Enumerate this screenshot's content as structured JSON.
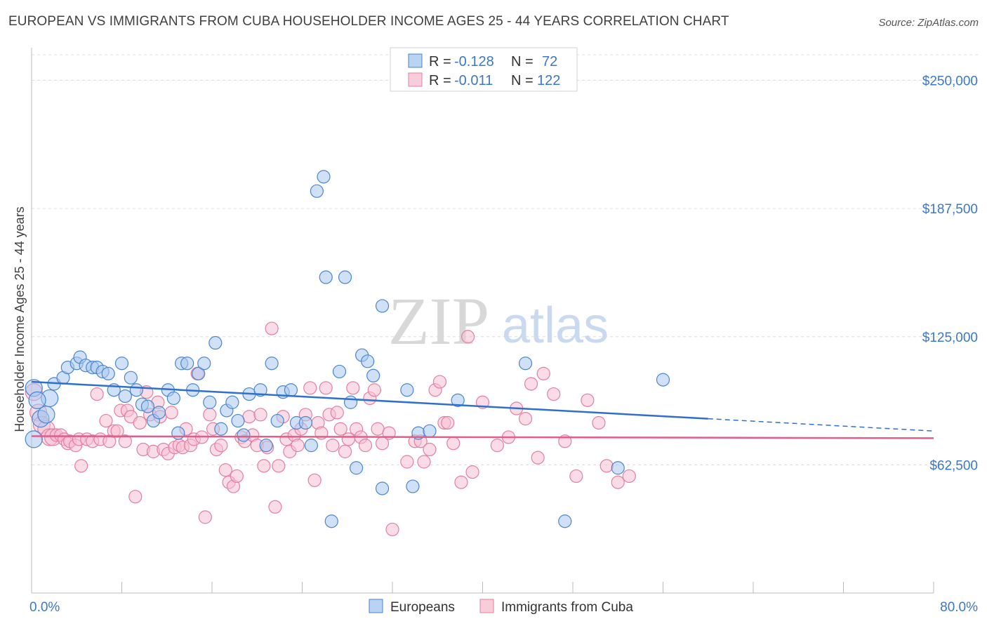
{
  "title": "EUROPEAN VS IMMIGRANTS FROM CUBA HOUSEHOLDER INCOME AGES 25 - 44 YEARS CORRELATION CHART",
  "source": "Source: ZipAtlas.com",
  "watermark": {
    "zip": "ZIP",
    "atlas": "atlas"
  },
  "legend": {
    "r_label": "R =",
    "n_label": "N =",
    "rows": [
      {
        "r": "-0.128",
        "n": "72"
      },
      {
        "r": "-0.011",
        "n": "122"
      }
    ]
  },
  "colors": {
    "european_fill": "#a9c8f0",
    "european_stroke": "#4a86cf",
    "european_line": "#2f6fce",
    "cuba_fill": "#f6c0d1",
    "cuba_stroke": "#e37fa1",
    "cuba_line": "#e35d8a",
    "tick_text": "#3b78c8",
    "grid": "#dddddd"
  },
  "chart_data": {
    "type": "scatter",
    "title": "EUROPEAN VS IMMIGRANTS FROM CUBA HOUSEHOLDER INCOME AGES 25 - 44 YEARS CORRELATION CHART",
    "xlabel": "",
    "ylabel": "Householder Income Ages 25 - 44 years",
    "xlim": [
      0,
      80
    ],
    "ylim": [
      0,
      262500
    ],
    "x_tick_labels": [
      "0.0%",
      "80.0%"
    ],
    "y_ticks": [
      62500,
      125000,
      187500,
      250000
    ],
    "y_tick_labels": [
      "$62,500",
      "$125,000",
      "$187,500",
      "$250,000"
    ],
    "grid": true,
    "legend_position": "top-center",
    "series": [
      {
        "name": "Europeans",
        "points": [
          [
            0.2,
            75000
          ],
          [
            0.8,
            85000
          ],
          [
            1.3,
            87000
          ],
          [
            1.6,
            95000
          ],
          [
            2.0,
            102000
          ],
          [
            2.8,
            105000
          ],
          [
            3.2,
            110000
          ],
          [
            4.0,
            112000
          ],
          [
            4.3,
            115000
          ],
          [
            4.8,
            111000
          ],
          [
            5.4,
            110000
          ],
          [
            5.8,
            110000
          ],
          [
            6.3,
            108000
          ],
          [
            6.8,
            107000
          ],
          [
            7.3,
            99000
          ],
          [
            8.0,
            112000
          ],
          [
            8.3,
            96000
          ],
          [
            8.8,
            105000
          ],
          [
            9.3,
            99000
          ],
          [
            9.8,
            92000
          ],
          [
            10.3,
            91000
          ],
          [
            10.8,
            84000
          ],
          [
            11.3,
            88000
          ],
          [
            12.1,
            99000
          ],
          [
            12.6,
            95000
          ],
          [
            13.0,
            78000
          ],
          [
            13.3,
            112000
          ],
          [
            13.8,
            112000
          ],
          [
            14.3,
            99000
          ],
          [
            14.8,
            107000
          ],
          [
            15.3,
            112000
          ],
          [
            15.8,
            93000
          ],
          [
            16.3,
            122000
          ],
          [
            16.8,
            80000
          ],
          [
            17.3,
            89000
          ],
          [
            17.8,
            93000
          ],
          [
            18.3,
            84000
          ],
          [
            18.8,
            77000
          ],
          [
            19.3,
            97000
          ],
          [
            20.3,
            99000
          ],
          [
            20.8,
            72000
          ],
          [
            21.3,
            112000
          ],
          [
            21.8,
            84000
          ],
          [
            22.3,
            98000
          ],
          [
            23.0,
            99000
          ],
          [
            23.5,
            83000
          ],
          [
            24.3,
            83000
          ],
          [
            24.8,
            72000
          ],
          [
            25.3,
            196000
          ],
          [
            25.9,
            203000
          ],
          [
            26.1,
            154000
          ],
          [
            26.6,
            35000
          ],
          [
            27.3,
            108000
          ],
          [
            27.8,
            154000
          ],
          [
            28.3,
            93000
          ],
          [
            28.8,
            61000
          ],
          [
            29.3,
            116000
          ],
          [
            29.8,
            113000
          ],
          [
            30.3,
            106000
          ],
          [
            31.1,
            140000
          ],
          [
            31.1,
            51000
          ],
          [
            33.3,
            99000
          ],
          [
            33.8,
            52000
          ],
          [
            34.3,
            78000
          ],
          [
            35.3,
            79000
          ],
          [
            37.8,
            94000
          ],
          [
            43.8,
            112000
          ],
          [
            47.3,
            35000
          ],
          [
            52.0,
            61000
          ],
          [
            56.0,
            104000
          ],
          [
            0.2,
            100000
          ],
          [
            0.5,
            94000
          ]
        ]
      },
      {
        "name": "Immigrants from Cuba",
        "points": [
          [
            0.2,
            98000
          ],
          [
            0.6,
            88000
          ],
          [
            0.9,
            82000
          ],
          [
            1.3,
            80000
          ],
          [
            1.6,
            76000
          ],
          [
            1.9,
            76000
          ],
          [
            2.2,
            77000
          ],
          [
            2.6,
            77000
          ],
          [
            2.9,
            75000
          ],
          [
            3.2,
            73000
          ],
          [
            3.4,
            74000
          ],
          [
            3.9,
            72000
          ],
          [
            4.2,
            75000
          ],
          [
            4.4,
            62000
          ],
          [
            4.9,
            75000
          ],
          [
            5.4,
            74000
          ],
          [
            5.8,
            97000
          ],
          [
            6.1,
            75000
          ],
          [
            6.6,
            84000
          ],
          [
            6.9,
            74000
          ],
          [
            7.3,
            79000
          ],
          [
            7.6,
            79000
          ],
          [
            7.9,
            89000
          ],
          [
            8.3,
            74000
          ],
          [
            8.5,
            89000
          ],
          [
            8.8,
            86000
          ],
          [
            9.2,
            47000
          ],
          [
            9.6,
            83000
          ],
          [
            9.9,
            70000
          ],
          [
            10.2,
            98000
          ],
          [
            10.5,
            87000
          ],
          [
            10.8,
            69000
          ],
          [
            11.2,
            93000
          ],
          [
            11.4,
            86000
          ],
          [
            11.7,
            70000
          ],
          [
            12.1,
            68000
          ],
          [
            12.4,
            88000
          ],
          [
            12.7,
            71000
          ],
          [
            13.1,
            72000
          ],
          [
            13.4,
            71000
          ],
          [
            13.7,
            80000
          ],
          [
            14.1,
            72000
          ],
          [
            14.4,
            75000
          ],
          [
            14.7,
            107000
          ],
          [
            15.1,
            76000
          ],
          [
            15.4,
            37000
          ],
          [
            15.8,
            87000
          ],
          [
            16.1,
            80000
          ],
          [
            16.4,
            70000
          ],
          [
            16.8,
            72000
          ],
          [
            17.2,
            60000
          ],
          [
            17.5,
            54000
          ],
          [
            17.9,
            52000
          ],
          [
            18.2,
            57000
          ],
          [
            18.6,
            76000
          ],
          [
            18.9,
            74000
          ],
          [
            19.3,
            86000
          ],
          [
            19.6,
            77000
          ],
          [
            20.0,
            72000
          ],
          [
            20.3,
            87000
          ],
          [
            20.6,
            62000
          ],
          [
            20.9,
            71000
          ],
          [
            21.3,
            129000
          ],
          [
            21.6,
            42000
          ],
          [
            21.9,
            62000
          ],
          [
            22.3,
            86000
          ],
          [
            22.6,
            75000
          ],
          [
            22.9,
            69000
          ],
          [
            23.3,
            77000
          ],
          [
            23.6,
            72000
          ],
          [
            23.9,
            80000
          ],
          [
            24.3,
            87000
          ],
          [
            24.7,
            100000
          ],
          [
            25.1,
            55000
          ],
          [
            25.4,
            83000
          ],
          [
            25.7,
            78000
          ],
          [
            26.1,
            100000
          ],
          [
            26.4,
            87000
          ],
          [
            26.7,
            72000
          ],
          [
            27.1,
            88000
          ],
          [
            27.4,
            80000
          ],
          [
            27.8,
            69000
          ],
          [
            28.1,
            75000
          ],
          [
            28.5,
            100000
          ],
          [
            28.8,
            80000
          ],
          [
            29.2,
            76000
          ],
          [
            29.6,
            72000
          ],
          [
            30.0,
            95000
          ],
          [
            30.4,
            99000
          ],
          [
            30.7,
            80000
          ],
          [
            31.1,
            73000
          ],
          [
            31.7,
            78000
          ],
          [
            32.0,
            31000
          ],
          [
            33.3,
            64000
          ],
          [
            34.0,
            74000
          ],
          [
            34.5,
            74000
          ],
          [
            34.8,
            64000
          ],
          [
            35.3,
            70000
          ],
          [
            35.8,
            99000
          ],
          [
            36.2,
            103000
          ],
          [
            36.6,
            83000
          ],
          [
            36.9,
            83000
          ],
          [
            37.4,
            73000
          ],
          [
            38.1,
            54000
          ],
          [
            38.7,
            125000
          ],
          [
            39.1,
            59000
          ],
          [
            40.0,
            93000
          ],
          [
            41.3,
            72000
          ],
          [
            42.3,
            76000
          ],
          [
            43.0,
            90000
          ],
          [
            43.8,
            85000
          ],
          [
            44.3,
            102000
          ],
          [
            44.9,
            66000
          ],
          [
            45.4,
            107000
          ],
          [
            46.3,
            97000
          ],
          [
            47.3,
            74000
          ],
          [
            48.3,
            57000
          ],
          [
            49.3,
            94000
          ],
          [
            50.3,
            83000
          ],
          [
            51.0,
            62000
          ],
          [
            52.0,
            54000
          ],
          [
            53.0,
            57000
          ]
        ]
      }
    ],
    "trend_lines": [
      {
        "series": "Europeans",
        "start": [
          0,
          103000
        ],
        "end": [
          60,
          85000
        ],
        "dashed_to": [
          80,
          79000
        ]
      },
      {
        "series": "Immigrants from Cuba",
        "start": [
          0,
          76500
        ],
        "end": [
          80,
          75500
        ]
      }
    ]
  },
  "bottom_legend": [
    "Europeans",
    "Immigrants from Cuba"
  ]
}
